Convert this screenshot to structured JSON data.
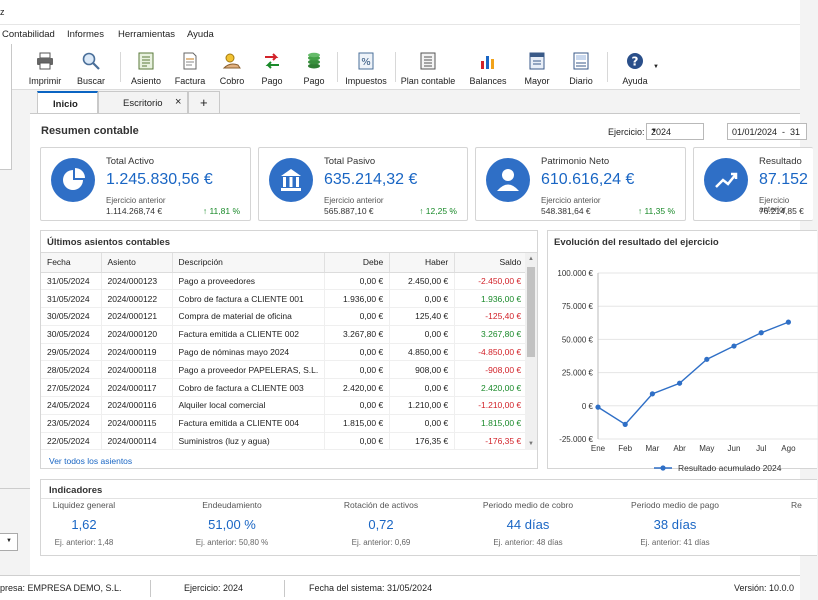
{
  "window": {
    "title_fragment": "z"
  },
  "menu": [
    "Contabilidad",
    "Informes",
    "Herramientas",
    "Ayuda"
  ],
  "toolbar": [
    {
      "label": "Imprimir",
      "icon": "printer-icon"
    },
    {
      "label": "Buscar",
      "icon": "search-icon"
    },
    {
      "label": "Asiento",
      "icon": "ledger-icon"
    },
    {
      "label": "Factura",
      "icon": "invoice-icon"
    },
    {
      "label": "Cobro",
      "icon": "collect-icon"
    },
    {
      "label": "Pago",
      "icon": "transfer-icon"
    },
    {
      "label": "Pago",
      "icon": "coins-icon"
    },
    {
      "label": "Impuestos",
      "icon": "percent-icon"
    },
    {
      "label": "Plan contable",
      "icon": "chart-of-accounts-icon"
    },
    {
      "label": "Balances",
      "icon": "bar-chart-icon"
    },
    {
      "label": "Mayor",
      "icon": "ledger-book-icon"
    },
    {
      "label": "Diario",
      "icon": "journal-icon"
    },
    {
      "label": "Ayuda",
      "icon": "help-icon"
    }
  ],
  "tabs": [
    {
      "label": "Inicio"
    },
    {
      "label": "Escritorio"
    },
    {
      "label": "+"
    }
  ],
  "summary": {
    "title": "Resumen contable",
    "ejercicio_label": "Ejercicio:",
    "ejercicio_value": "2024",
    "date_range": "01/01/2024  -  31"
  },
  "cards": [
    {
      "title": "Total Activo",
      "value": "1.245.830,56 €",
      "prev_label": "Ejercicio anterior",
      "prev": "1.114.268,74 €",
      "pct": "↑ 11,81 %",
      "icon": "pie-chart-icon"
    },
    {
      "title": "Total Pasivo",
      "value": "635.214,32 €",
      "prev_label": "Ejercicio anterior",
      "prev": "565.887,10 €",
      "pct": "↑ 12,25 %",
      "icon": "bank-icon"
    },
    {
      "title": "Patrimonio Neto",
      "value": "610.616,24 €",
      "prev_label": "Ejercicio anterior",
      "prev": "548.381,64 €",
      "pct": "↑ 11,35 %",
      "icon": "person-icon"
    },
    {
      "title": "Resultado",
      "value": "87.152",
      "prev_label": "Ejercicio anterior",
      "prev": "76.214,85 €",
      "pct": "",
      "icon": "trend-up-icon"
    }
  ],
  "entries": {
    "title": "Últimos asientos contables",
    "columns": [
      "Fecha",
      "Asiento",
      "Descripción",
      "Debe",
      "Haber",
      "Saldo"
    ],
    "rows": [
      [
        "31/05/2024",
        "2024/000123",
        "Pago a proveedores",
        "0,00 €",
        "2.450,00 €",
        "-2.450,00 €"
      ],
      [
        "31/05/2024",
        "2024/000122",
        "Cobro de factura a CLIENTE 001",
        "1.936,00 €",
        "0,00 €",
        "1.936,00 €"
      ],
      [
        "30/05/2024",
        "2024/000121",
        "Compra de material de oficina",
        "0,00 €",
        "125,40 €",
        "-125,40 €"
      ],
      [
        "30/05/2024",
        "2024/000120",
        "Factura emitida a CLIENTE 002",
        "3.267,80 €",
        "0,00 €",
        "3.267,80 €"
      ],
      [
        "29/05/2024",
        "2024/000119",
        "Pago de nóminas mayo 2024",
        "0,00 €",
        "4.850,00 €",
        "-4.850,00 €"
      ],
      [
        "28/05/2024",
        "2024/000118",
        "Pago a proveedor PAPELERAS, S.L.",
        "0,00 €",
        "908,00 €",
        "-908,00 €"
      ],
      [
        "27/05/2024",
        "2024/000117",
        "Cobro de factura a CLIENTE 003",
        "2.420,00 €",
        "0,00 €",
        "2.420,00 €"
      ],
      [
        "24/05/2024",
        "2024/000116",
        "Alquiler local comercial",
        "0,00 €",
        "1.210,00 €",
        "-1.210,00 €"
      ],
      [
        "23/05/2024",
        "2024/000115",
        "Factura emitida a CLIENTE 004",
        "1.815,00 €",
        "0,00 €",
        "1.815,00 €"
      ],
      [
        "22/05/2024",
        "2024/000114",
        "Suministros (luz y agua)",
        "0,00 €",
        "176,35 €",
        "-176,35 €"
      ]
    ],
    "link": "Ver todos los asientos"
  },
  "chart_panel_title": "Evolución del resultado del ejercicio",
  "chart_data": {
    "type": "line",
    "title": "Evolución del resultado del ejercicio",
    "categories": [
      "Ene",
      "Feb",
      "Mar",
      "Abr",
      "May",
      "Jun",
      "Jul",
      "Ago"
    ],
    "series": [
      {
        "name": "Resultado acumulado 2024",
        "values": [
          -1000,
          -14000,
          9000,
          17000,
          35000,
          45000,
          55000,
          63000
        ],
        "color": "#2f6fc6"
      }
    ],
    "ylim": [
      -25000,
      100000
    ],
    "yticks": [
      -25000,
      0,
      25000,
      50000,
      75000,
      100000
    ],
    "ytick_labels": [
      "-25.000 €",
      "0 €",
      "25.000 €",
      "50.000 €",
      "75.000 €",
      "100.000 €"
    ],
    "grid": true,
    "legend": "bottom"
  },
  "indicators": {
    "title": "Indicadores",
    "items": [
      {
        "label": "Liquidez general",
        "value": "1,62",
        "prev": "Ej. anterior: 1,48"
      },
      {
        "label": "Endeudamiento",
        "value": "51,00 %",
        "prev": "Ej. anterior: 50,80 %"
      },
      {
        "label": "Rotación de activos",
        "value": "0,72",
        "prev": "Ej. anterior: 0,69"
      },
      {
        "label": "Periodo medio de cobro",
        "value": "44 días",
        "prev": "Ej. anterior: 48 días"
      },
      {
        "label": "Periodo medio de pago",
        "value": "38 días",
        "prev": "Ej. anterior: 41 días"
      },
      {
        "label": "Re",
        "value": "",
        "prev": ""
      }
    ]
  },
  "status": {
    "company": "presa: EMPRESA DEMO, S.L.",
    "ejercicio": "Ejercicio: 2024",
    "fecha": "Fecha del sistema: 31/05/2024",
    "version": "Versión: 10.0.0"
  },
  "colors": {
    "accent": "#1a66c4",
    "negative": "#d2232a",
    "positive": "#1a8a2a"
  }
}
